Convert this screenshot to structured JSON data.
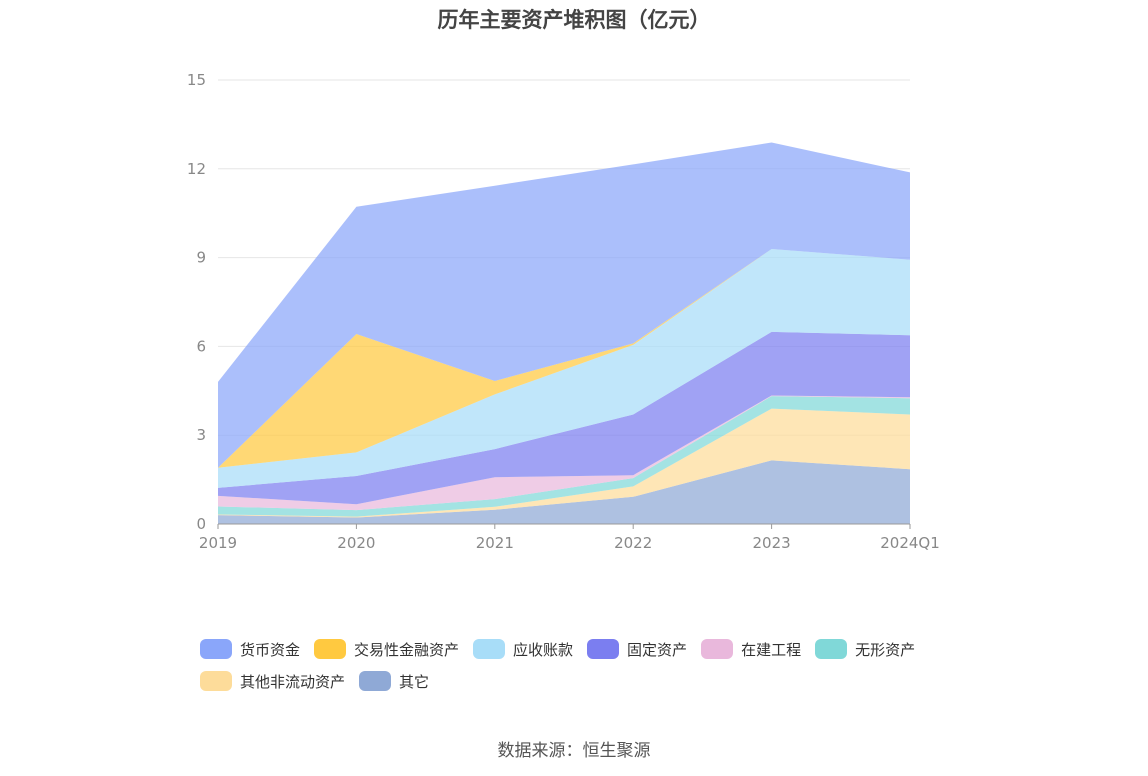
{
  "title": "历年主要资产堆积图（亿元）",
  "source": "数据来源：恒生聚源",
  "chart_data": {
    "type": "area",
    "stacked": true,
    "title": "历年主要资产堆积图（亿元）",
    "categories": [
      "2019",
      "2020",
      "2021",
      "2022",
      "2023",
      "2024Q1"
    ],
    "ylim": [
      0,
      15
    ],
    "yticks": [
      0,
      3,
      6,
      9,
      12,
      15
    ],
    "grid": true,
    "legend_position": "bottom",
    "series": [
      {
        "name": "其它",
        "color": "#8fa9d6",
        "values": [
          0.3,
          0.22,
          0.48,
          0.92,
          2.15,
          1.85
        ]
      },
      {
        "name": "其他非流动资产",
        "color": "#fddc9a",
        "values": [
          0.02,
          0.03,
          0.1,
          0.35,
          1.75,
          1.85
        ]
      },
      {
        "name": "无形资产",
        "color": "#80d8d8",
        "values": [
          0.27,
          0.22,
          0.26,
          0.28,
          0.42,
          0.55
        ]
      },
      {
        "name": "在建工程",
        "color": "#e9b8dc",
        "values": [
          0.36,
          0.2,
          0.74,
          0.1,
          0.02,
          0.03
        ]
      },
      {
        "name": "固定资产",
        "color": "#7b7ef0",
        "values": [
          0.27,
          0.95,
          0.95,
          2.05,
          2.15,
          2.1
        ]
      },
      {
        "name": "应收账款",
        "color": "#a8ddf8",
        "values": [
          0.68,
          0.8,
          1.85,
          2.35,
          2.8,
          2.55
        ]
      },
      {
        "name": "交易性金融资产",
        "color": "#ffc940",
        "values": [
          0.0,
          4.0,
          0.45,
          0.05,
          0.0,
          0.0
        ]
      },
      {
        "name": "货币资金",
        "color": "#8aa6fa",
        "values": [
          2.9,
          4.3,
          6.6,
          6.05,
          3.6,
          2.95
        ]
      }
    ]
  },
  "legend_order": [
    "货币资金",
    "交易性金融资产",
    "应收账款",
    "固定资产",
    "在建工程",
    "无形资产",
    "其他非流动资产",
    "其它"
  ]
}
